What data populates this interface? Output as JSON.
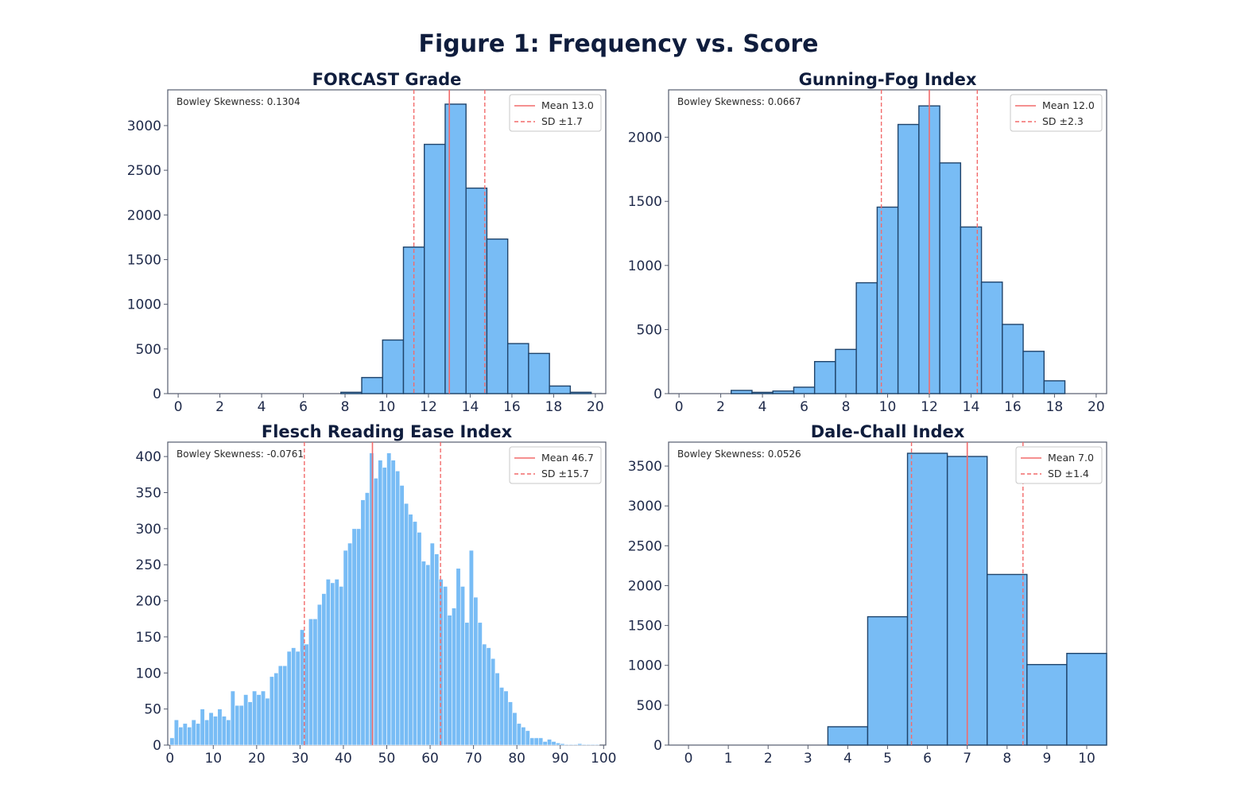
{
  "figure_title": "Figure 1: Frequency vs. Score",
  "colors": {
    "bar_fill": "#78bcf5",
    "bar_edge": "#20446b",
    "mean_line": "#f26b6b",
    "sd_line": "#f26b6b",
    "title": "#0f1d3d"
  },
  "chart_data": [
    {
      "type": "bar",
      "title": "FORCAST Grade",
      "annotation": "Bowley Skewness: 0.1304",
      "legend": {
        "position": "top-right",
        "mean_label": "Mean 13.0",
        "sd_label": "SD ±1.7"
      },
      "mean": 13.0,
      "sd": 1.7,
      "xlim": [
        -0.5,
        20.5
      ],
      "ylim": [
        0,
        3400
      ],
      "xticks": [
        0,
        2,
        4,
        6,
        8,
        10,
        12,
        14,
        16,
        18,
        20
      ],
      "yticks": [
        0,
        500,
        1000,
        1500,
        2000,
        2500,
        3000
      ],
      "bin_width": 1.0,
      "bin_starts": [
        7.8,
        8.8,
        9.8,
        10.8,
        11.8,
        12.8,
        13.8,
        14.8,
        15.8,
        16.8,
        17.8,
        18.8
      ],
      "values": [
        15,
        180,
        600,
        1640,
        2790,
        3240,
        2300,
        1730,
        560,
        450,
        85,
        15
      ]
    },
    {
      "type": "bar",
      "title": "Gunning-Fog Index",
      "annotation": "Bowley Skewness: 0.0667",
      "legend": {
        "position": "top-right",
        "mean_label": "Mean 12.0",
        "sd_label": "SD ±2.3"
      },
      "mean": 12.0,
      "sd": 2.3,
      "xlim": [
        -0.5,
        20.5
      ],
      "ylim": [
        0,
        2370
      ],
      "xticks": [
        0,
        2,
        4,
        6,
        8,
        10,
        12,
        14,
        16,
        18,
        20
      ],
      "yticks": [
        0,
        500,
        1000,
        1500,
        2000
      ],
      "bin_width": 1.0,
      "bin_starts": [
        2.5,
        3.5,
        4.5,
        5.5,
        6.5,
        7.5,
        8.5,
        9.5,
        10.5,
        11.5,
        12.5,
        13.5,
        14.5,
        15.5,
        16.5,
        17.5
      ],
      "values": [
        25,
        10,
        20,
        50,
        250,
        345,
        865,
        1455,
        2100,
        2245,
        1800,
        1300,
        870,
        540,
        330,
        100
      ]
    },
    {
      "type": "bar",
      "title": "Flesch Reading Ease Index",
      "annotation": "Bowley Skewness: -0.0761",
      "legend": {
        "position": "top-right",
        "mean_label": "Mean 46.7",
        "sd_label": "SD ±15.7"
      },
      "mean": 46.7,
      "sd": 15.7,
      "xlim": [
        -0.5,
        100.5
      ],
      "ylim": [
        0,
        420
      ],
      "xticks": [
        0,
        10,
        20,
        30,
        40,
        50,
        60,
        70,
        80,
        90,
        100
      ],
      "yticks": [
        0,
        50,
        100,
        150,
        200,
        250,
        300,
        350,
        400
      ],
      "bin_width": 1.0,
      "bin_starts": [
        0,
        1,
        2,
        3,
        4,
        5,
        6,
        7,
        8,
        9,
        10,
        11,
        12,
        13,
        14,
        15,
        16,
        17,
        18,
        19,
        20,
        21,
        22,
        23,
        24,
        25,
        26,
        27,
        28,
        29,
        30,
        31,
        32,
        33,
        34,
        35,
        36,
        37,
        38,
        39,
        40,
        41,
        42,
        43,
        44,
        45,
        46,
        47,
        48,
        49,
        50,
        51,
        52,
        53,
        54,
        55,
        56,
        57,
        58,
        59,
        60,
        61,
        62,
        63,
        64,
        65,
        66,
        67,
        68,
        69,
        70,
        71,
        72,
        73,
        74,
        75,
        76,
        77,
        78,
        79,
        80,
        81,
        82,
        83,
        84,
        85,
        86,
        87,
        88,
        89,
        90,
        91,
        92,
        93,
        94,
        95,
        96,
        97,
        98,
        99
      ],
      "values": [
        10,
        35,
        25,
        30,
        25,
        35,
        30,
        50,
        35,
        45,
        40,
        50,
        40,
        35,
        75,
        55,
        55,
        70,
        60,
        75,
        70,
        75,
        65,
        95,
        100,
        110,
        110,
        130,
        135,
        130,
        160,
        140,
        175,
        175,
        195,
        210,
        230,
        225,
        230,
        220,
        270,
        280,
        300,
        300,
        340,
        350,
        405,
        370,
        395,
        385,
        405,
        395,
        380,
        360,
        335,
        320,
        310,
        295,
        255,
        250,
        280,
        265,
        230,
        220,
        180,
        190,
        245,
        220,
        170,
        270,
        205,
        170,
        140,
        135,
        120,
        100,
        80,
        75,
        60,
        45,
        30,
        25,
        20,
        10,
        10,
        10,
        5,
        8,
        5,
        3,
        2,
        1,
        1,
        1,
        2,
        1,
        1,
        1,
        1,
        0
      ]
    },
    {
      "type": "bar",
      "title": "Dale-Chall Index",
      "annotation": "Bowley Skewness: 0.0526",
      "legend": {
        "position": "top-right",
        "mean_label": "Mean 7.0",
        "sd_label": "SD ±1.4"
      },
      "mean": 7.0,
      "sd": 1.4,
      "xlim": [
        -0.5,
        10.5
      ],
      "ylim": [
        0,
        3800
      ],
      "xticks": [
        0,
        1,
        2,
        3,
        4,
        5,
        6,
        7,
        8,
        9,
        10
      ],
      "yticks": [
        0,
        500,
        1000,
        1500,
        2000,
        2500,
        3000,
        3500
      ],
      "bin_width": 1.0,
      "bin_starts": [
        3.5,
        4.5,
        5.5,
        6.5,
        7.5,
        8.5,
        9.5
      ],
      "values": [
        230,
        1610,
        3660,
        3620,
        2140,
        1010,
        1150
      ]
    }
  ]
}
